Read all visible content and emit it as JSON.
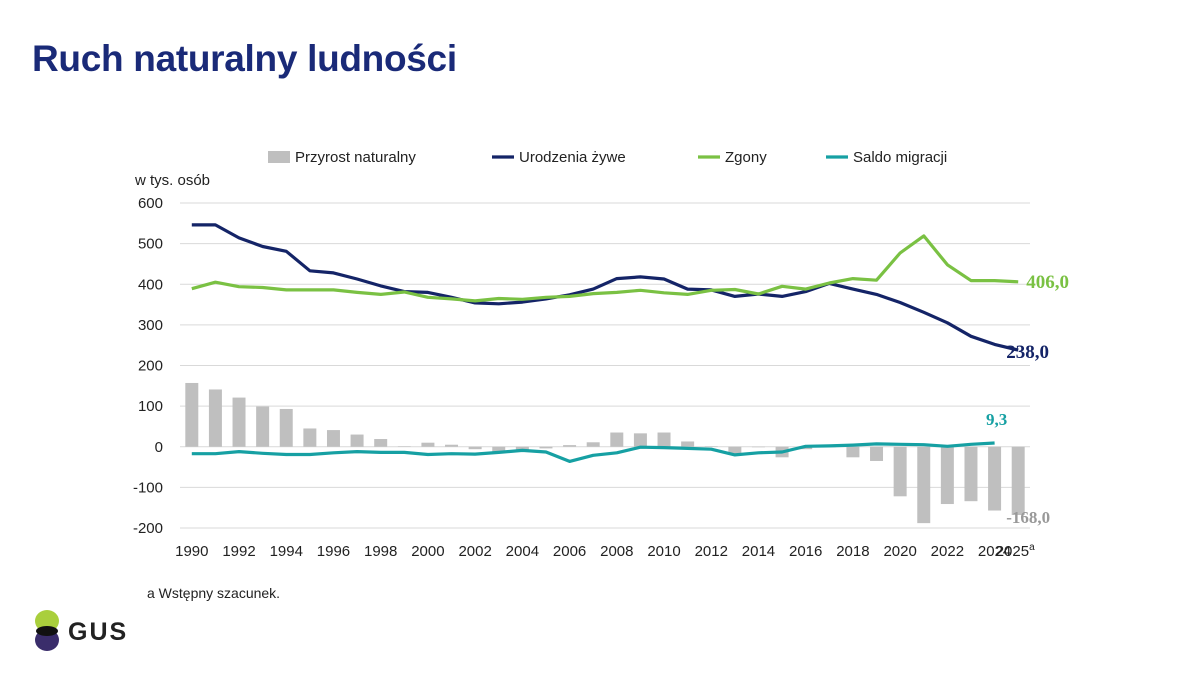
{
  "title": "Ruch naturalny ludności",
  "footnote": "a Wstępny szacunek.",
  "logo_text": "GUS",
  "colors": {
    "title": "#1a2a78",
    "bars": "#bfbfbf",
    "births": "#142467",
    "deaths": "#7ac143",
    "migration": "#16a0a3",
    "logo_top": "#a9cf3c",
    "logo_bottom": "#3a2d6b"
  },
  "chart_data": {
    "type": "bar+line",
    "ylabel": "w tys. osób",
    "ylim": [
      -200,
      600
    ],
    "yticks": [
      "600",
      "500",
      "400",
      "300",
      "200",
      "100",
      "0",
      "-100",
      "-200"
    ],
    "ytick_values": [
      600,
      500,
      400,
      300,
      200,
      100,
      0,
      -100,
      -200
    ],
    "x": [
      1990,
      1991,
      1992,
      1993,
      1994,
      1995,
      1996,
      1997,
      1998,
      1999,
      2000,
      2001,
      2002,
      2003,
      2004,
      2005,
      2006,
      2007,
      2008,
      2009,
      2010,
      2011,
      2012,
      2013,
      2014,
      2015,
      2016,
      2017,
      2018,
      2019,
      2020,
      2021,
      2022,
      2023,
      2024,
      2025
    ],
    "xtick_labels": [
      "1990",
      "1992",
      "1994",
      "1996",
      "1998",
      "2000",
      "2002",
      "2004",
      "2006",
      "2008",
      "2010",
      "2012",
      "2014",
      "2016",
      "2018",
      "2020",
      "2022",
      "2024",
      "2025"
    ],
    "xtick_years": [
      1990,
      1992,
      1994,
      1996,
      1998,
      2000,
      2002,
      2004,
      2006,
      2008,
      2010,
      2012,
      2014,
      2016,
      2018,
      2020,
      2022,
      2024,
      2025
    ],
    "xtick_sup": {
      "2025": "a"
    },
    "legend": [
      {
        "label": "Przyrost naturalny",
        "kind": "bar",
        "color": "#bfbfbf"
      },
      {
        "label": "Urodzenia żywe",
        "kind": "line",
        "color": "#142467"
      },
      {
        "label": "Zgony",
        "kind": "line",
        "color": "#7ac143"
      },
      {
        "label": "Saldo migracji",
        "kind": "line",
        "color": "#16a0a3"
      }
    ],
    "legend_position": "top",
    "series": [
      {
        "name": "Przyrost naturalny",
        "kind": "bar",
        "color": "#bfbfbf",
        "values": [
          157,
          141,
          121,
          99,
          93,
          45,
          41,
          30,
          19,
          1,
          10,
          5,
          -6,
          -14,
          -7,
          -4,
          4,
          11,
          35,
          33,
          35,
          13,
          1,
          -18,
          -1,
          -26,
          -6,
          0,
          -26,
          -35,
          -122,
          -188,
          -141,
          -134,
          -157,
          -168
        ]
      },
      {
        "name": "Urodzenia żywe",
        "kind": "line",
        "color": "#142467",
        "values": [
          546,
          546,
          514,
          493,
          481,
          433,
          428,
          413,
          396,
          382,
          380,
          368,
          354,
          352,
          356,
          364,
          374,
          388,
          414,
          418,
          413,
          388,
          386,
          370,
          376,
          370,
          382,
          402,
          388,
          375,
          355,
          331,
          305,
          272,
          252,
          238
        ]
      },
      {
        "name": "Zgony",
        "kind": "line",
        "color": "#7ac143",
        "values": [
          389,
          405,
          394,
          392,
          386,
          386,
          386,
          380,
          375,
          381,
          368,
          364,
          359,
          365,
          363,
          368,
          370,
          377,
          380,
          385,
          379,
          375,
          385,
          387,
          376,
          395,
          388,
          403,
          414,
          410,
          477,
          519,
          448,
          409,
          409,
          406
        ]
      },
      {
        "name": "Saldo migracji",
        "kind": "line",
        "color": "#16a0a3",
        "values": [
          -17,
          -17,
          -12,
          -16,
          -19,
          -19,
          -15,
          -12,
          -14,
          -14,
          -19,
          -17,
          -18,
          -14,
          -9,
          -13,
          -36,
          -21,
          -15,
          -1,
          -2,
          -4,
          -6,
          -20,
          -15,
          -13,
          1,
          2,
          4,
          7,
          6,
          5,
          1,
          6,
          9.3,
          null
        ]
      }
    ],
    "annotations": [
      {
        "series": "Zgony",
        "text": "406,0",
        "year": 2025,
        "color": "#7ac143"
      },
      {
        "series": "Urodzenia żywe",
        "text": "238,0",
        "year": 2025,
        "color": "#142467"
      },
      {
        "series": "Saldo migracji",
        "text": "9,3",
        "year": 2024,
        "color": "#16a0a3"
      },
      {
        "series": "Przyrost naturalny",
        "text": "-168,0",
        "year": 2025,
        "color": "#999999"
      }
    ],
    "grid": true
  }
}
